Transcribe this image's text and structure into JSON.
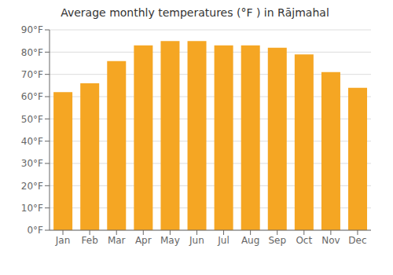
{
  "chart_data": {
    "type": "bar",
    "title": "Average monthly temperatures (°F ) in Rājmahal",
    "categories": [
      "Jan",
      "Feb",
      "Mar",
      "Apr",
      "May",
      "Jun",
      "Jul",
      "Aug",
      "Sep",
      "Oct",
      "Nov",
      "Dec"
    ],
    "values": [
      62,
      66,
      76,
      83,
      85,
      85,
      83,
      83,
      82,
      79,
      71,
      64
    ],
    "color": "#F5A623",
    "ylim": [
      0,
      90
    ],
    "yticks": [
      {
        "value": 0,
        "label": "0°F"
      },
      {
        "value": 10,
        "label": "10°F"
      },
      {
        "value": 20,
        "label": "20°F"
      },
      {
        "value": 30,
        "label": "30°F"
      },
      {
        "value": 40,
        "label": "40°F"
      },
      {
        "value": 50,
        "label": "50°F"
      },
      {
        "value": 60,
        "label": "60°F"
      },
      {
        "value": 70,
        "label": "70°F"
      },
      {
        "value": 80,
        "label": "80°F"
      },
      {
        "value": 90,
        "label": "90°F"
      }
    ],
    "grid": true
  }
}
